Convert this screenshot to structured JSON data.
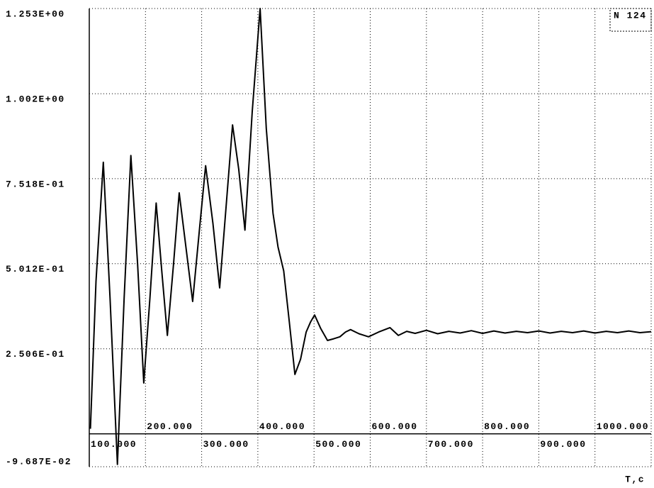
{
  "chart_data": {
    "type": "line",
    "x_label": "T,c",
    "xlim": [
      100,
      1100
    ],
    "xticks": [
      {
        "value": 100,
        "label": "100.000"
      },
      {
        "value": 200,
        "label": "200.000"
      },
      {
        "value": 300,
        "label": "300.000"
      },
      {
        "value": 400,
        "label": "400.000"
      },
      {
        "value": 500,
        "label": "500.000"
      },
      {
        "value": 600,
        "label": "600.000"
      },
      {
        "value": 700,
        "label": "700.000"
      },
      {
        "value": 800,
        "label": "800.000"
      },
      {
        "value": 900,
        "label": "900.000"
      },
      {
        "value": 1000,
        "label": "1000.000"
      }
    ],
    "ylim": [
      -0.09687,
      1.253
    ],
    "yticks": [
      {
        "value": -0.09687,
        "label": "-9.687E-02"
      },
      {
        "value": 0.2506,
        "label": "2.506E-01"
      },
      {
        "value": 0.5012,
        "label": "5.012E-01"
      },
      {
        "value": 0.7518,
        "label": "7.518E-01"
      },
      {
        "value": 1.002,
        "label": "1.002E+00"
      },
      {
        "value": 1.253,
        "label": "1.253E+00"
      }
    ],
    "grid": true,
    "legend": "top-right",
    "series": [
      {
        "name": "N 124",
        "color": "#000000",
        "x": [
          102,
          112,
          125,
          137,
          150,
          162,
          174,
          186,
          197,
          208,
          219,
          229,
          239,
          250,
          260,
          272,
          284,
          296,
          307,
          320,
          332,
          344,
          355,
          366,
          377,
          390,
          404,
          415,
          427,
          436,
          446,
          456,
          466,
          476,
          486,
          494,
          501,
          512,
          524,
          535,
          546,
          556,
          565,
          580,
          597,
          615,
          635,
          650,
          665,
          680,
          700,
          720,
          740,
          760,
          780,
          800,
          820,
          840,
          860,
          880,
          900,
          920,
          940,
          960,
          980,
          1000,
          1020,
          1040,
          1060,
          1080,
          1100
        ],
        "values": [
          0.015,
          0.45,
          0.8,
          0.4,
          -0.09,
          0.4,
          0.82,
          0.5,
          0.15,
          0.4,
          0.68,
          0.48,
          0.29,
          0.5,
          0.71,
          0.55,
          0.39,
          0.6,
          0.79,
          0.62,
          0.43,
          0.68,
          0.91,
          0.78,
          0.6,
          0.95,
          1.253,
          0.9,
          0.65,
          0.55,
          0.48,
          0.33,
          0.175,
          0.22,
          0.3,
          0.33,
          0.35,
          0.31,
          0.275,
          0.28,
          0.286,
          0.3,
          0.307,
          0.295,
          0.286,
          0.3,
          0.313,
          0.29,
          0.302,
          0.296,
          0.305,
          0.295,
          0.302,
          0.297,
          0.304,
          0.296,
          0.303,
          0.297,
          0.302,
          0.298,
          0.303,
          0.297,
          0.302,
          0.298,
          0.303,
          0.297,
          0.302,
          0.298,
          0.303,
          0.298,
          0.301
        ]
      }
    ]
  }
}
